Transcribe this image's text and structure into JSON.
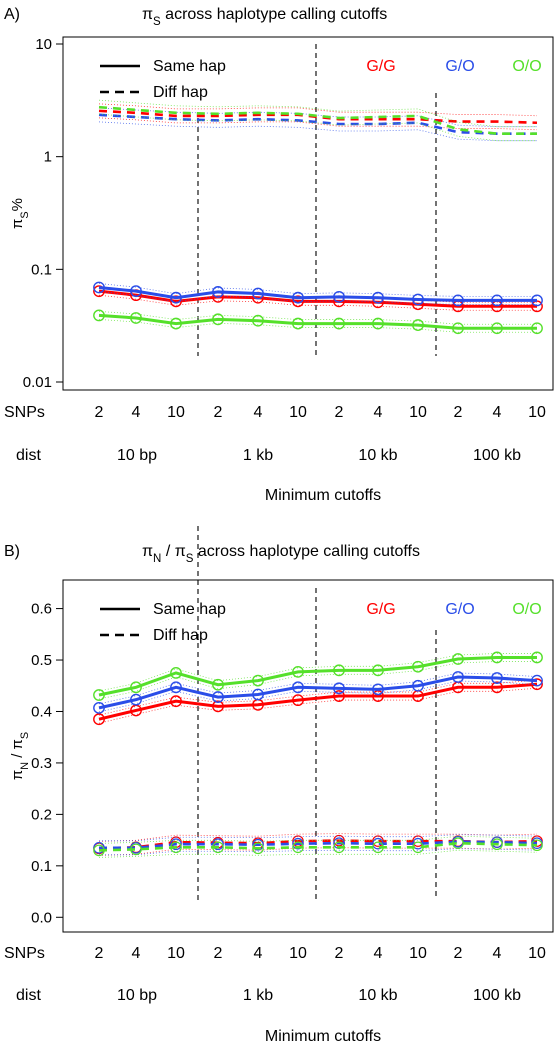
{
  "colors": {
    "gg": "#ff0000",
    "go": "#2a4de8",
    "oo": "#55e02a",
    "axis": "#000000"
  },
  "chart_data": [
    {
      "id": "A",
      "type": "line",
      "panel_label": "A)",
      "title": {
        "greek": "π",
        "sub": "S",
        "rest": "across haplotype calling cutoffs"
      },
      "ylabel": {
        "greek": "π",
        "sub": "S",
        "rest": "%"
      },
      "xlabel": "Minimum cutoffs",
      "yscale": "log",
      "ylim": [
        0.01,
        10
      ],
      "yticks": [
        0.01,
        0.1,
        1,
        10
      ],
      "ytick_labels": [
        "0.01",
        "0.1",
        "1",
        "10"
      ],
      "row1_label": "SNPs",
      "row2_label": "dist",
      "snps": [
        "2",
        "4",
        "10",
        "2",
        "4",
        "10",
        "2",
        "4",
        "10",
        "2",
        "4",
        "10"
      ],
      "dist_groups": [
        "10 bp",
        "1 kb",
        "10 kb",
        "100 kb"
      ],
      "legend": {
        "position": "top-left",
        "entries": [
          "Same hap",
          "Diff hap"
        ],
        "groups": [
          "G/G",
          "G/O",
          "O/O"
        ]
      },
      "series": [
        {
          "group": "G/G",
          "line": "same",
          "color": "gg",
          "values": [
            0.064,
            0.059,
            0.052,
            0.057,
            0.056,
            0.052,
            0.052,
            0.051,
            0.049,
            0.047,
            0.047,
            0.047
          ]
        },
        {
          "group": "G/O",
          "line": "same",
          "color": "go",
          "values": [
            0.069,
            0.064,
            0.056,
            0.063,
            0.061,
            0.056,
            0.057,
            0.056,
            0.054,
            0.053,
            0.053,
            0.053
          ]
        },
        {
          "group": "O/O",
          "line": "same",
          "color": "oo",
          "values": [
            0.039,
            0.037,
            0.033,
            0.036,
            0.035,
            0.033,
            0.033,
            0.033,
            0.032,
            0.03,
            0.03,
            0.03
          ]
        },
        {
          "group": "G/G",
          "line": "diff",
          "color": "gg",
          "values": [
            2.55,
            2.45,
            2.3,
            2.3,
            2.35,
            2.35,
            2.15,
            2.15,
            2.15,
            2.05,
            2.05,
            2.0
          ]
        },
        {
          "group": "G/O",
          "line": "diff",
          "color": "go",
          "values": [
            2.35,
            2.25,
            2.15,
            2.1,
            2.15,
            2.1,
            1.95,
            1.95,
            2.0,
            1.65,
            1.6,
            1.6
          ]
        },
        {
          "group": "O/O",
          "line": "diff",
          "color": "oo",
          "values": [
            2.75,
            2.6,
            2.45,
            2.4,
            2.45,
            2.4,
            2.2,
            2.25,
            2.3,
            1.75,
            1.6,
            1.6
          ]
        }
      ]
    },
    {
      "id": "B",
      "type": "line",
      "panel_label": "B)",
      "title": {
        "greek": "π",
        "sub": "N",
        "mid": " / ",
        "greek2": "π",
        "sub2": "S",
        "rest": "across haplotype calling cutoffs"
      },
      "ylabel": {
        "greek": "π",
        "sub": "N",
        "mid": " / ",
        "greek2": "π",
        "sub2": "S"
      },
      "xlabel": "Minimum cutoffs",
      "yscale": "linear",
      "ylim": [
        -0.015,
        0.64
      ],
      "yticks": [
        0.0,
        0.1,
        0.2,
        0.3,
        0.4,
        0.5,
        0.6
      ],
      "ytick_labels": [
        "0.0",
        "0.1",
        "0.2",
        "0.3",
        "0.4",
        "0.5",
        "0.6"
      ],
      "row1_label": "SNPs",
      "row2_label": "dist",
      "snps": [
        "2",
        "4",
        "10",
        "2",
        "4",
        "10",
        "2",
        "4",
        "10",
        "2",
        "4",
        "10"
      ],
      "dist_groups": [
        "10 bp",
        "1 kb",
        "10 kb",
        "100 kb"
      ],
      "legend": {
        "position": "top-left",
        "entries": [
          "Same hap",
          "Diff hap"
        ],
        "groups": [
          "G/G",
          "G/O",
          "O/O"
        ]
      },
      "series": [
        {
          "group": "G/G",
          "line": "same",
          "color": "gg",
          "values": [
            0.385,
            0.402,
            0.42,
            0.41,
            0.413,
            0.422,
            0.43,
            0.43,
            0.43,
            0.447,
            0.447,
            0.453
          ]
        },
        {
          "group": "G/O",
          "line": "same",
          "color": "go",
          "values": [
            0.407,
            0.423,
            0.447,
            0.428,
            0.433,
            0.447,
            0.445,
            0.443,
            0.45,
            0.467,
            0.465,
            0.46
          ]
        },
        {
          "group": "O/O",
          "line": "same",
          "color": "oo",
          "values": [
            0.432,
            0.447,
            0.475,
            0.452,
            0.46,
            0.477,
            0.48,
            0.48,
            0.487,
            0.502,
            0.505,
            0.505
          ]
        },
        {
          "group": "G/G",
          "line": "diff",
          "color": "gg",
          "values": [
            0.134,
            0.136,
            0.146,
            0.145,
            0.144,
            0.148,
            0.149,
            0.148,
            0.148,
            0.148,
            0.146,
            0.148
          ]
        },
        {
          "group": "G/O",
          "line": "diff",
          "color": "go",
          "values": [
            0.135,
            0.135,
            0.142,
            0.142,
            0.141,
            0.143,
            0.144,
            0.143,
            0.143,
            0.147,
            0.146,
            0.144
          ]
        },
        {
          "group": "O/O",
          "line": "diff",
          "color": "oo",
          "values": [
            0.13,
            0.132,
            0.136,
            0.136,
            0.134,
            0.136,
            0.136,
            0.136,
            0.136,
            0.144,
            0.142,
            0.14
          ]
        }
      ]
    }
  ]
}
